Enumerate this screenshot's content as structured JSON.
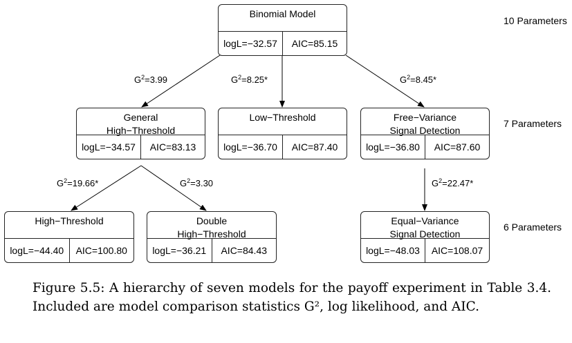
{
  "levels": [
    {
      "label": "10 Parameters"
    },
    {
      "label": "7 Parameters"
    },
    {
      "label": "6 Parameters"
    }
  ],
  "models": {
    "binomial": {
      "title1": "Binomial Model",
      "title2": "",
      "logL": "logL=−32.57",
      "aic": "AIC=85.15"
    },
    "general_ht": {
      "title1": "General",
      "title2": "High−Threshold",
      "logL": "logL=−34.57",
      "aic": "AIC=83.13"
    },
    "low_threshold": {
      "title1": "Low−Threshold",
      "title2": "",
      "logL": "logL=−36.70",
      "aic": "AIC=87.40"
    },
    "free_variance": {
      "title1": "Free−Variance",
      "title2": "Signal Detection",
      "logL": "logL=−36.80",
      "aic": "AIC=87.60"
    },
    "high_threshold": {
      "title1": "High−Threshold",
      "title2": "",
      "logL": "logL=−44.40",
      "aic": "AIC=100.80"
    },
    "double_ht": {
      "title1": "Double",
      "title2": "High−Threshold",
      "logL": "logL=−36.21",
      "aic": "AIC=84.43"
    },
    "equal_variance": {
      "title1": "Equal−Variance",
      "title2": "Signal Detection",
      "logL": "logL=−48.03",
      "aic": "AIC=108.07"
    }
  },
  "edges": {
    "binomial_general": {
      "prefix": "G",
      "sup": "2",
      "value": "=3.99"
    },
    "binomial_low": {
      "prefix": "G",
      "sup": "2",
      "value": "=8.25*"
    },
    "binomial_free": {
      "prefix": "G",
      "sup": "2",
      "value": "=8.45*"
    },
    "general_high": {
      "prefix": "G",
      "sup": "2",
      "value": "=19.66*"
    },
    "general_double": {
      "prefix": "G",
      "sup": "2",
      "value": "=3.30"
    },
    "free_equal": {
      "prefix": "G",
      "sup": "2",
      "value": "=22.47*"
    }
  },
  "caption": {
    "text": "Figure 5.5: A hierarchy of seven models for the payoff experiment in Table 3.4. Included are model comparison statistics G², log likelihood, and AIC."
  }
}
